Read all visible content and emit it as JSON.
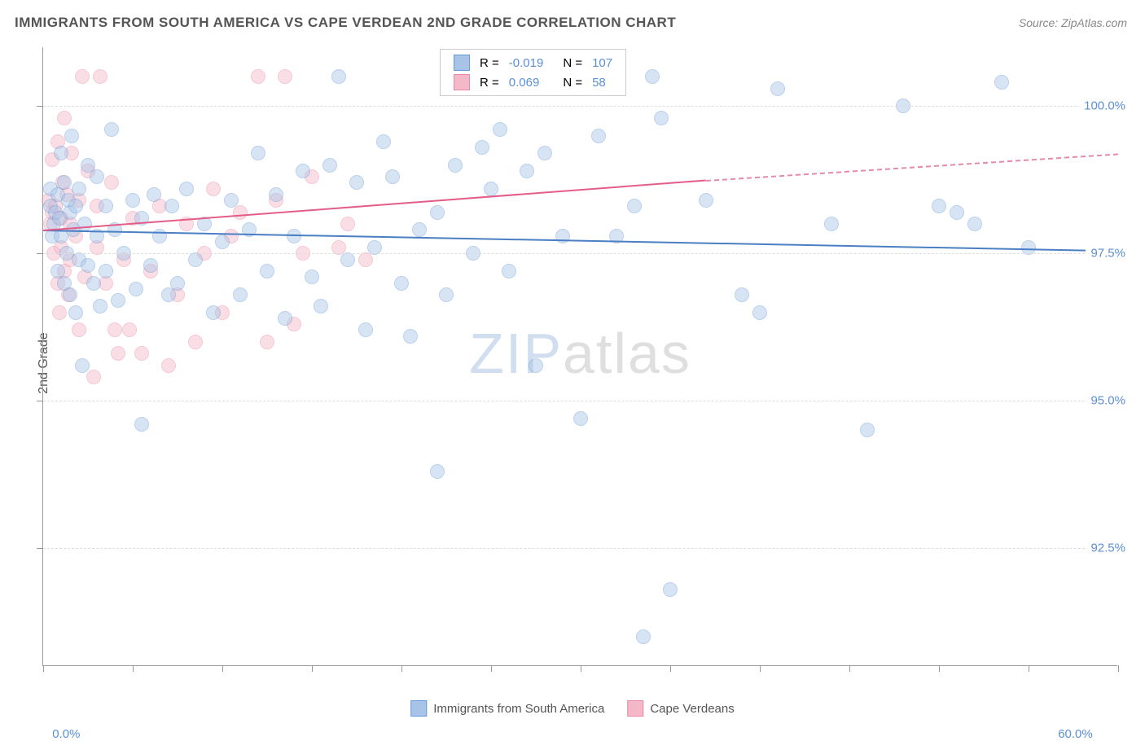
{
  "title": "IMMIGRANTS FROM SOUTH AMERICA VS CAPE VERDEAN 2ND GRADE CORRELATION CHART",
  "source": "Source: ZipAtlas.com",
  "y_axis_title": "2nd Grade",
  "watermark": {
    "part1": "ZIP",
    "part2": "atlas"
  },
  "chart": {
    "type": "scatter",
    "xlim": [
      0,
      60
    ],
    "ylim": [
      90.5,
      101
    ],
    "xtick_positions": [
      0,
      5,
      10,
      15,
      20,
      25,
      30,
      35,
      40,
      45,
      50,
      55,
      60
    ],
    "xlabel_min": "0.0%",
    "xlabel_max": "60.0%",
    "y_gridlines": [
      {
        "value": 92.5,
        "label": "92.5%"
      },
      {
        "value": 95.0,
        "label": "95.0%"
      },
      {
        "value": 97.5,
        "label": "97.5%"
      },
      {
        "value": 100.0,
        "label": "100.0%"
      }
    ],
    "background_color": "#ffffff",
    "grid_color": "#dddddd",
    "axis_color": "#999999",
    "tick_label_color": "#5b8fd6",
    "marker_radius": 9,
    "marker_opacity": 0.45,
    "series": [
      {
        "name": "Immigrants from South America",
        "color_fill": "#a7c4e8",
        "color_stroke": "#6a9bd4",
        "r_value": "-0.019",
        "n_value": "107",
        "trend": {
          "x1": 0,
          "y1": 97.9,
          "x2": 60,
          "y2": 97.55,
          "color": "#4a7fc4",
          "dash": false
        },
        "points": [
          [
            0.4,
            98.3
          ],
          [
            0.4,
            98.6
          ],
          [
            0.5,
            97.8
          ],
          [
            0.6,
            98.0
          ],
          [
            0.7,
            98.2
          ],
          [
            0.8,
            98.5
          ],
          [
            0.8,
            97.2
          ],
          [
            0.9,
            98.1
          ],
          [
            1.0,
            99.2
          ],
          [
            1.0,
            97.8
          ],
          [
            1.2,
            97.0
          ],
          [
            1.2,
            98.7
          ],
          [
            1.3,
            97.5
          ],
          [
            1.4,
            98.4
          ],
          [
            1.5,
            98.2
          ],
          [
            1.5,
            96.8
          ],
          [
            1.6,
            99.5
          ],
          [
            1.7,
            97.9
          ],
          [
            1.8,
            98.3
          ],
          [
            1.8,
            96.5
          ],
          [
            2.0,
            97.4
          ],
          [
            2.0,
            98.6
          ],
          [
            2.2,
            95.6
          ],
          [
            2.3,
            98.0
          ],
          [
            2.5,
            97.3
          ],
          [
            2.5,
            99.0
          ],
          [
            2.8,
            97.0
          ],
          [
            3.0,
            97.8
          ],
          [
            3.0,
            98.8
          ],
          [
            3.2,
            96.6
          ],
          [
            3.5,
            97.2
          ],
          [
            3.5,
            98.3
          ],
          [
            3.8,
            99.6
          ],
          [
            4.0,
            97.9
          ],
          [
            4.2,
            96.7
          ],
          [
            4.5,
            97.5
          ],
          [
            5.0,
            98.4
          ],
          [
            5.2,
            96.9
          ],
          [
            5.5,
            94.6
          ],
          [
            5.5,
            98.1
          ],
          [
            6.0,
            97.3
          ],
          [
            6.2,
            98.5
          ],
          [
            6.5,
            97.8
          ],
          [
            7.0,
            96.8
          ],
          [
            7.2,
            98.3
          ],
          [
            7.5,
            97.0
          ],
          [
            8.0,
            98.6
          ],
          [
            8.5,
            97.4
          ],
          [
            9.0,
            98.0
          ],
          [
            9.5,
            96.5
          ],
          [
            10.0,
            97.7
          ],
          [
            10.5,
            98.4
          ],
          [
            11.0,
            96.8
          ],
          [
            11.5,
            97.9
          ],
          [
            12.0,
            99.2
          ],
          [
            12.5,
            97.2
          ],
          [
            13.0,
            98.5
          ],
          [
            13.5,
            96.4
          ],
          [
            14.0,
            97.8
          ],
          [
            14.5,
            98.9
          ],
          [
            15.0,
            97.1
          ],
          [
            15.5,
            96.6
          ],
          [
            16.0,
            99.0
          ],
          [
            16.5,
            100.5
          ],
          [
            17.0,
            97.4
          ],
          [
            17.5,
            98.7
          ],
          [
            18.0,
            96.2
          ],
          [
            18.5,
            97.6
          ],
          [
            19.0,
            99.4
          ],
          [
            19.5,
            98.8
          ],
          [
            20.0,
            97.0
          ],
          [
            20.5,
            96.1
          ],
          [
            21.0,
            97.9
          ],
          [
            22.0,
            98.2
          ],
          [
            22.0,
            93.8
          ],
          [
            22.5,
            96.8
          ],
          [
            23.0,
            99.0
          ],
          [
            23.5,
            100.3
          ],
          [
            24.0,
            97.5
          ],
          [
            24.5,
            99.3
          ],
          [
            25.0,
            98.6
          ],
          [
            25.5,
            99.6
          ],
          [
            26.0,
            97.2
          ],
          [
            27.0,
            98.9
          ],
          [
            27.5,
            95.6
          ],
          [
            28.0,
            99.2
          ],
          [
            29.0,
            97.8
          ],
          [
            30.0,
            94.7
          ],
          [
            31.0,
            99.5
          ],
          [
            32.0,
            97.8
          ],
          [
            33.0,
            98.3
          ],
          [
            33.5,
            91.0
          ],
          [
            34.0,
            100.5
          ],
          [
            34.5,
            99.8
          ],
          [
            35.0,
            91.8
          ],
          [
            37.0,
            98.4
          ],
          [
            39.0,
            96.8
          ],
          [
            40.0,
            96.5
          ],
          [
            41.0,
            100.3
          ],
          [
            44.0,
            98.0
          ],
          [
            46.0,
            94.5
          ],
          [
            48.0,
            100.0
          ],
          [
            50.0,
            98.3
          ],
          [
            51.0,
            98.2
          ],
          [
            52.0,
            98.0
          ],
          [
            53.5,
            100.4
          ],
          [
            55.0,
            97.6
          ]
        ]
      },
      {
        "name": "Cape Verdeans",
        "color_fill": "#f4b8c8",
        "color_stroke": "#e88aa5",
        "r_value": "0.069",
        "n_value": "58",
        "trend_solid": {
          "x1": 0,
          "y1": 97.9,
          "x2": 37,
          "y2": 98.75,
          "color": "#e35d87",
          "dash": false
        },
        "trend_dash": {
          "x1": 37,
          "y1": 98.75,
          "x2": 60,
          "y2": 99.2,
          "color": "#e88aa5",
          "dash": true
        },
        "points": [
          [
            0.3,
            98.4
          ],
          [
            0.4,
            98.0
          ],
          [
            0.5,
            98.2
          ],
          [
            0.5,
            99.1
          ],
          [
            0.6,
            97.5
          ],
          [
            0.7,
            98.3
          ],
          [
            0.8,
            97.0
          ],
          [
            0.8,
            99.4
          ],
          [
            0.9,
            96.5
          ],
          [
            1.0,
            98.1
          ],
          [
            1.0,
            97.6
          ],
          [
            1.1,
            98.7
          ],
          [
            1.2,
            99.8
          ],
          [
            1.2,
            97.2
          ],
          [
            1.3,
            98.5
          ],
          [
            1.4,
            96.8
          ],
          [
            1.5,
            98.0
          ],
          [
            1.5,
            97.4
          ],
          [
            1.6,
            99.2
          ],
          [
            1.8,
            97.8
          ],
          [
            2.0,
            98.4
          ],
          [
            2.0,
            96.2
          ],
          [
            2.2,
            100.5
          ],
          [
            2.3,
            97.1
          ],
          [
            2.5,
            98.9
          ],
          [
            2.8,
            95.4
          ],
          [
            3.0,
            97.6
          ],
          [
            3.0,
            98.3
          ],
          [
            3.2,
            100.5
          ],
          [
            3.5,
            97.0
          ],
          [
            3.8,
            98.7
          ],
          [
            4.0,
            96.2
          ],
          [
            4.2,
            95.8
          ],
          [
            4.5,
            97.4
          ],
          [
            4.8,
            96.2
          ],
          [
            5.0,
            98.1
          ],
          [
            5.5,
            95.8
          ],
          [
            6.0,
            97.2
          ],
          [
            6.5,
            98.3
          ],
          [
            7.0,
            95.6
          ],
          [
            7.5,
            96.8
          ],
          [
            8.0,
            98.0
          ],
          [
            8.5,
            96.0
          ],
          [
            9.0,
            97.5
          ],
          [
            9.5,
            98.6
          ],
          [
            10.0,
            96.5
          ],
          [
            10.5,
            97.8
          ],
          [
            11.0,
            98.2
          ],
          [
            12.0,
            100.5
          ],
          [
            12.5,
            96.0
          ],
          [
            13.0,
            98.4
          ],
          [
            13.5,
            100.5
          ],
          [
            14.0,
            96.3
          ],
          [
            14.5,
            97.5
          ],
          [
            15.0,
            98.8
          ],
          [
            16.5,
            97.6
          ],
          [
            17.0,
            98.0
          ],
          [
            18.0,
            97.4
          ]
        ]
      }
    ]
  },
  "legend_top": {
    "r_label": "R =",
    "n_label": "N ="
  },
  "legend_bottom": {
    "items": [
      {
        "label": "Immigrants from South America",
        "fill": "#a7c4e8",
        "stroke": "#6a9bd4"
      },
      {
        "label": "Cape Verdeans",
        "fill": "#f4b8c8",
        "stroke": "#e88aa5"
      }
    ]
  }
}
